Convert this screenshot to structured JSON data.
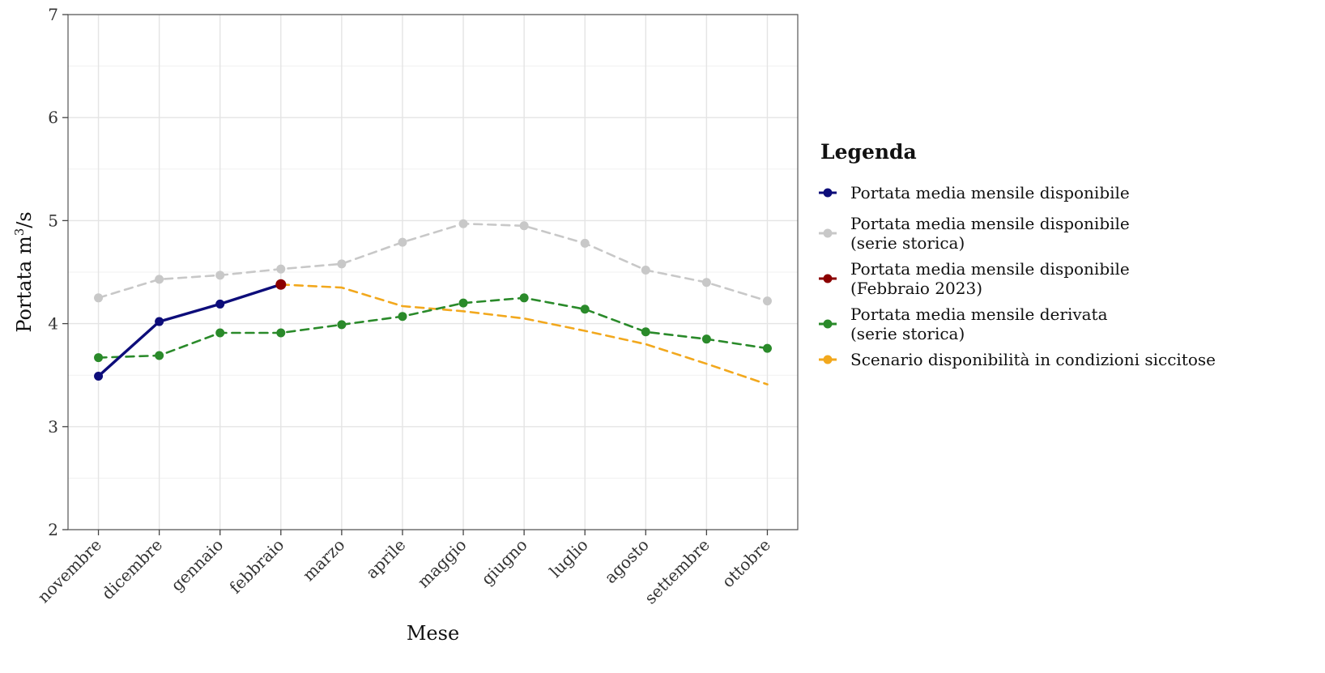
{
  "chart_data": {
    "type": "line",
    "title": "",
    "xlabel": "Mese",
    "ylabel_main": "Portata m",
    "ylabel_sup": "3",
    "ylabel_tail": "/s",
    "categories": [
      "novembre",
      "dicembre",
      "gennaio",
      "febbraio",
      "marzo",
      "aprile",
      "maggio",
      "giugno",
      "luglio",
      "agosto",
      "settembre",
      "ottobre"
    ],
    "ylim": [
      2,
      7
    ],
    "yticks": [
      "2",
      "3",
      "4",
      "5",
      "6",
      "7"
    ],
    "grid": true,
    "legend": {
      "title": "Legenda",
      "placement": "right",
      "entries": [
        {
          "id": "disponibile",
          "lines": [
            "Portata media mensile disponibile"
          ]
        },
        {
          "id": "storica",
          "lines": [
            "Portata media mensile disponibile",
            "(serie storica)"
          ]
        },
        {
          "id": "feb2023",
          "lines": [
            "Portata media mensile disponibile",
            "(Febbraio 2023)"
          ]
        },
        {
          "id": "derivata",
          "lines": [
            "Portata media mensile derivata",
            "(serie storica)"
          ]
        },
        {
          "id": "scenario",
          "lines": [
            "Scenario disponibilità in condizioni siccitose"
          ]
        }
      ]
    },
    "series": [
      {
        "id": "storica",
        "color": "#c8c8c8",
        "dashed": true,
        "points": true,
        "values": [
          4.25,
          4.43,
          4.47,
          4.53,
          4.58,
          4.79,
          4.97,
          4.95,
          4.78,
          4.52,
          4.4,
          4.22
        ]
      },
      {
        "id": "scenario",
        "color": "#f2a81d",
        "dashed": true,
        "points": false,
        "values": [
          null,
          null,
          null,
          4.38,
          4.35,
          4.17,
          4.12,
          4.05,
          3.93,
          3.8,
          3.61,
          3.41
        ]
      },
      {
        "id": "derivata",
        "color": "#2a8a2a",
        "dashed": true,
        "points": true,
        "values": [
          3.67,
          3.69,
          3.91,
          3.91,
          3.99,
          4.07,
          4.2,
          4.25,
          4.14,
          3.92,
          3.85,
          3.76
        ]
      },
      {
        "id": "disponibile",
        "color": "#0d0d7a",
        "dashed": false,
        "points": true,
        "values": [
          3.49,
          4.02,
          4.19,
          4.38,
          null,
          null,
          null,
          null,
          null,
          null,
          null,
          null
        ]
      },
      {
        "id": "feb2023",
        "color": "#8b0000",
        "dashed": false,
        "points": true,
        "values": [
          null,
          null,
          null,
          4.38,
          null,
          null,
          null,
          null,
          null,
          null,
          null,
          null
        ]
      }
    ]
  }
}
